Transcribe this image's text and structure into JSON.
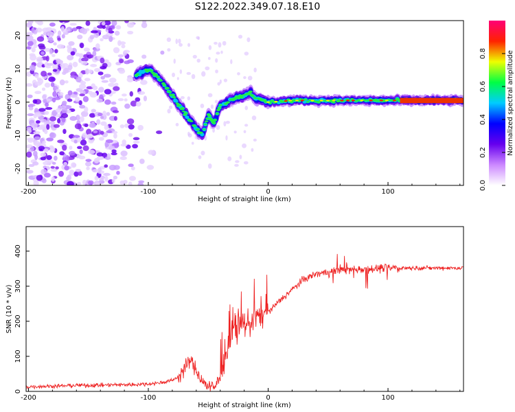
{
  "title": "S122.2022.349.07.18.E10",
  "chart_data": [
    {
      "type": "heatmap",
      "xlabel": "Height of straight line (km)",
      "ylabel": "Frequency (Hz)",
      "xlim": [
        -202,
        163
      ],
      "ylim": [
        -25,
        24.5
      ],
      "x_ticks": [
        -200,
        -100,
        0,
        100
      ],
      "y_ticks": [
        -20,
        -10,
        0,
        10,
        20
      ],
      "colorbar": {
        "label": "Normalized spectral amplitude",
        "range": [
          0.0,
          1.0
        ],
        "ticks": [
          "0.0",
          "0.2",
          "0.4",
          "0.6",
          "0.8"
        ],
        "colormap": [
          "#ffffff",
          "#cc88ff",
          "#6600ee",
          "#0000ff",
          "#00ccff",
          "#00ff44",
          "#eeff00",
          "#ff2200",
          "#ff0077"
        ]
      },
      "ridge": {
        "x": [
          -110,
          -100,
          -90,
          -80,
          -70,
          -60,
          -55,
          -50,
          -45,
          -40,
          -35,
          -30,
          -20,
          -15,
          -10,
          0,
          20,
          40,
          60,
          80,
          100,
          120,
          163
        ],
        "y": [
          8,
          10,
          7,
          2,
          -3,
          -8,
          -10,
          -4,
          -6,
          -1,
          0,
          1,
          2,
          3,
          1,
          0,
          0.5,
          0.5,
          0.5,
          0.5,
          0.5,
          0.5,
          0.5
        ]
      },
      "noise_region": {
        "x_range": [
          -200,
          -85
        ],
        "density": "high"
      }
    },
    {
      "type": "line",
      "xlabel": "Height of straight line (km)",
      "ylabel": "SNR (10 * v/v)",
      "xlim": [
        -202,
        163
      ],
      "ylim": [
        0,
        470
      ],
      "x_ticks": [
        -200,
        -100,
        0,
        100
      ],
      "y_ticks": [
        0,
        100,
        200,
        300,
        400
      ],
      "color": "#ee2222",
      "series": [
        {
          "x": [
            -202,
            -180,
            -160,
            -140,
            -120,
            -100,
            -90,
            -80,
            -75,
            -70,
            -65,
            -60,
            -55,
            -50,
            -45,
            -40,
            -35,
            -30,
            -25,
            -20,
            -15,
            -10,
            -5,
            0,
            10,
            20,
            30,
            40,
            50,
            60,
            70,
            80,
            90,
            100,
            110,
            120,
            140,
            163
          ],
          "y": [
            10,
            12,
            14,
            15,
            16,
            18,
            22,
            28,
            40,
            65,
            90,
            60,
            30,
            15,
            10,
            40,
            110,
            160,
            180,
            190,
            200,
            210,
            220,
            225,
            260,
            290,
            320,
            335,
            340,
            345,
            348,
            350,
            350,
            352,
            352,
            352,
            352,
            352
          ]
        }
      ]
    }
  ]
}
